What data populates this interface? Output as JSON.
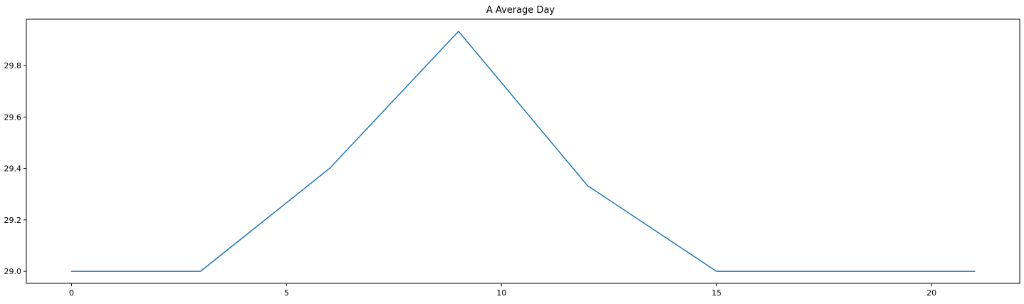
{
  "chart_data": {
    "type": "line",
    "title": "A Average Day",
    "xlabel": "",
    "ylabel": "",
    "xlim": [
      -1.05,
      22.05
    ],
    "ylim": [
      28.9533,
      29.98
    ],
    "x_ticks": [
      0,
      5,
      10,
      15,
      20
    ],
    "y_ticks": [
      29.0,
      29.2,
      29.4,
      29.6,
      29.8
    ],
    "x_tick_labels": [
      "0",
      "5",
      "10",
      "15",
      "20"
    ],
    "y_tick_labels": [
      "29.0",
      "29.2",
      "29.4",
      "29.6",
      "29.8"
    ],
    "grid": false,
    "legend": "none",
    "series": [
      {
        "color": "#1f77b4",
        "x": [
          0,
          3,
          6,
          9,
          12,
          15,
          18,
          21
        ],
        "y": [
          29.0,
          29.0,
          29.4,
          29.933,
          29.333,
          29.0,
          29.0,
          29.0
        ]
      }
    ]
  }
}
